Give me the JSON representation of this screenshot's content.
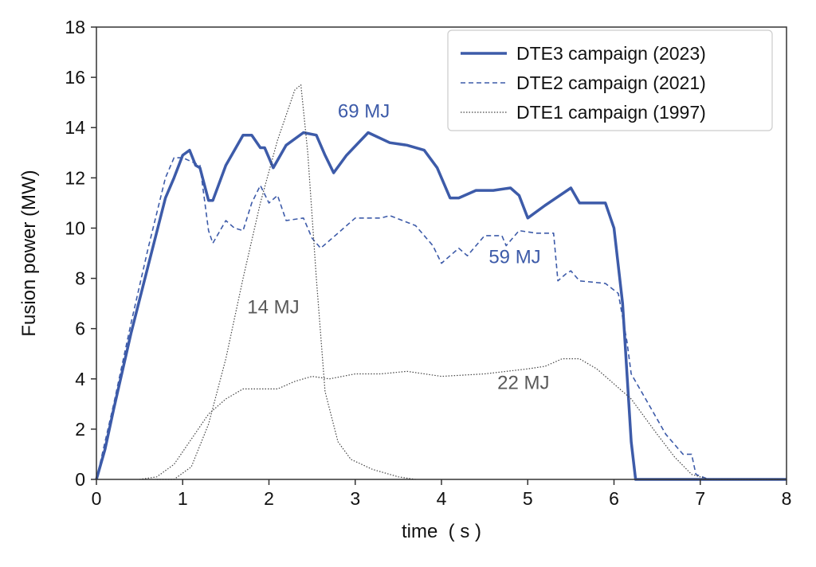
{
  "chart_data": {
    "type": "line",
    "title": "",
    "xlabel": "time  ( s )",
    "ylabel": "Fusion power (MW)",
    "xlim": [
      0,
      8
    ],
    "ylim": [
      0,
      18
    ],
    "xticks": [
      0,
      1,
      2,
      3,
      4,
      5,
      6,
      7,
      8
    ],
    "yticks": [
      0,
      2,
      4,
      6,
      8,
      10,
      12,
      14,
      16,
      18
    ],
    "grid": false,
    "legend_position": "top-right",
    "colors": {
      "dte3": "#3d5ba9",
      "dte2": "#3d5ba9",
      "dte1": "#444444",
      "annotation_gray": "#595959"
    },
    "series": [
      {
        "name": "DTE3 campaign (2023)",
        "style": "solid",
        "curves": [
          [
            [
              0,
              0
            ],
            [
              0.1,
              1.2
            ],
            [
              0.2,
              2.8
            ],
            [
              0.4,
              5.8
            ],
            [
              0.6,
              8.5
            ],
            [
              0.8,
              11.2
            ],
            [
              0.9,
              12.0
            ],
            [
              1.0,
              12.9
            ],
            [
              1.08,
              13.1
            ],
            [
              1.15,
              12.5
            ],
            [
              1.2,
              12.4
            ],
            [
              1.3,
              11.1
            ],
            [
              1.35,
              11.1
            ],
            [
              1.5,
              12.5
            ],
            [
              1.7,
              13.7
            ],
            [
              1.8,
              13.7
            ],
            [
              1.9,
              13.2
            ],
            [
              1.95,
              13.2
            ],
            [
              2.05,
              12.4
            ],
            [
              2.2,
              13.3
            ],
            [
              2.4,
              13.8
            ],
            [
              2.55,
              13.7
            ],
            [
              2.65,
              12.9
            ],
            [
              2.75,
              12.2
            ],
            [
              2.9,
              12.9
            ],
            [
              3.15,
              13.8
            ],
            [
              3.4,
              13.4
            ],
            [
              3.6,
              13.3
            ],
            [
              3.8,
              13.1
            ],
            [
              3.95,
              12.4
            ],
            [
              4.1,
              11.2
            ],
            [
              4.2,
              11.2
            ],
            [
              4.4,
              11.5
            ],
            [
              4.6,
              11.5
            ],
            [
              4.8,
              11.6
            ],
            [
              4.9,
              11.3
            ],
            [
              5.0,
              10.4
            ],
            [
              5.2,
              10.9
            ],
            [
              5.5,
              11.6
            ],
            [
              5.6,
              11.0
            ],
            [
              5.9,
              11.0
            ],
            [
              6.0,
              10.0
            ],
            [
              6.1,
              7.0
            ],
            [
              6.2,
              1.5
            ],
            [
              6.25,
              0
            ],
            [
              8,
              0
            ]
          ]
        ]
      },
      {
        "name": "DTE2 campaign (2021)",
        "style": "dashed",
        "curves": [
          [
            [
              0,
              0
            ],
            [
              0.2,
              3
            ],
            [
              0.4,
              6.2
            ],
            [
              0.6,
              9.2
            ],
            [
              0.8,
              12.0
            ],
            [
              0.9,
              12.8
            ],
            [
              1.0,
              12.8
            ],
            [
              1.2,
              12.5
            ],
            [
              1.3,
              9.9
            ],
            [
              1.35,
              9.4
            ],
            [
              1.5,
              10.3
            ],
            [
              1.6,
              10.0
            ],
            [
              1.7,
              9.9
            ],
            [
              1.8,
              11.0
            ],
            [
              1.9,
              11.7
            ],
            [
              2.0,
              11.0
            ],
            [
              2.1,
              11.3
            ],
            [
              2.2,
              10.3
            ],
            [
              2.4,
              10.4
            ],
            [
              2.5,
              9.6
            ],
            [
              2.6,
              9.2
            ],
            [
              2.8,
              9.8
            ],
            [
              3.0,
              10.4
            ],
            [
              3.3,
              10.4
            ],
            [
              3.4,
              10.5
            ],
            [
              3.7,
              10.1
            ],
            [
              3.9,
              9.3
            ],
            [
              4.0,
              8.6
            ],
            [
              4.2,
              9.2
            ],
            [
              4.3,
              8.9
            ],
            [
              4.5,
              9.7
            ],
            [
              4.7,
              9.7
            ],
            [
              4.75,
              9.3
            ],
            [
              4.9,
              9.9
            ],
            [
              5.1,
              9.8
            ],
            [
              5.3,
              9.8
            ],
            [
              5.35,
              7.9
            ],
            [
              5.45,
              8.2
            ],
            [
              5.5,
              8.3
            ],
            [
              5.6,
              7.9
            ],
            [
              5.9,
              7.8
            ],
            [
              6.05,
              7.4
            ],
            [
              6.15,
              5.5
            ],
            [
              6.2,
              4.2
            ],
            [
              6.4,
              3.0
            ],
            [
              6.6,
              1.8
            ],
            [
              6.8,
              1.0
            ],
            [
              6.9,
              1.0
            ],
            [
              6.95,
              0.2
            ],
            [
              7.1,
              0
            ],
            [
              8,
              0
            ]
          ]
        ]
      },
      {
        "name": "DTE1 campaign (1997)",
        "style": "dotted",
        "curves": [
          [
            [
              0.7,
              0
            ],
            [
              0.9,
              0
            ],
            [
              1.1,
              0.5
            ],
            [
              1.3,
              2.2
            ],
            [
              1.5,
              4.8
            ],
            [
              1.7,
              8.0
            ],
            [
              1.9,
              11.0
            ],
            [
              2.1,
              13.5
            ],
            [
              2.3,
              15.5
            ],
            [
              2.37,
              15.7
            ],
            [
              2.45,
              13
            ],
            [
              2.55,
              8
            ],
            [
              2.65,
              3.5
            ],
            [
              2.8,
              1.5
            ],
            [
              2.95,
              0.8
            ],
            [
              3.2,
              0.4
            ],
            [
              3.5,
              0.1
            ],
            [
              3.7,
              0
            ]
          ],
          [
            [
              0.5,
              0
            ],
            [
              0.7,
              0.1
            ],
            [
              0.9,
              0.6
            ],
            [
              1.1,
              1.6
            ],
            [
              1.3,
              2.6
            ],
            [
              1.5,
              3.2
            ],
            [
              1.7,
              3.6
            ],
            [
              1.9,
              3.6
            ],
            [
              2.1,
              3.6
            ],
            [
              2.3,
              3.9
            ],
            [
              2.5,
              4.1
            ],
            [
              2.7,
              4.0
            ],
            [
              3.0,
              4.2
            ],
            [
              3.3,
              4.2
            ],
            [
              3.6,
              4.3
            ],
            [
              4.0,
              4.1
            ],
            [
              4.5,
              4.2
            ],
            [
              5.0,
              4.4
            ],
            [
              5.2,
              4.5
            ],
            [
              5.4,
              4.8
            ],
            [
              5.6,
              4.8
            ],
            [
              5.8,
              4.4
            ],
            [
              6.0,
              3.8
            ],
            [
              6.2,
              3.2
            ],
            [
              6.5,
              1.8
            ],
            [
              6.7,
              0.9
            ],
            [
              6.9,
              0.2
            ],
            [
              7.1,
              0
            ],
            [
              8,
              0
            ]
          ]
        ]
      }
    ],
    "annotations": [
      {
        "text": "69 MJ",
        "x": 3.1,
        "y": 14.4,
        "color": "dte3"
      },
      {
        "text": "59 MJ",
        "x": 4.85,
        "y": 8.6,
        "color": "dte2"
      },
      {
        "text": "14 MJ",
        "x": 2.05,
        "y": 6.6,
        "color": "annotation_gray"
      },
      {
        "text": "22 MJ",
        "x": 4.95,
        "y": 3.6,
        "color": "annotation_gray"
      }
    ]
  }
}
